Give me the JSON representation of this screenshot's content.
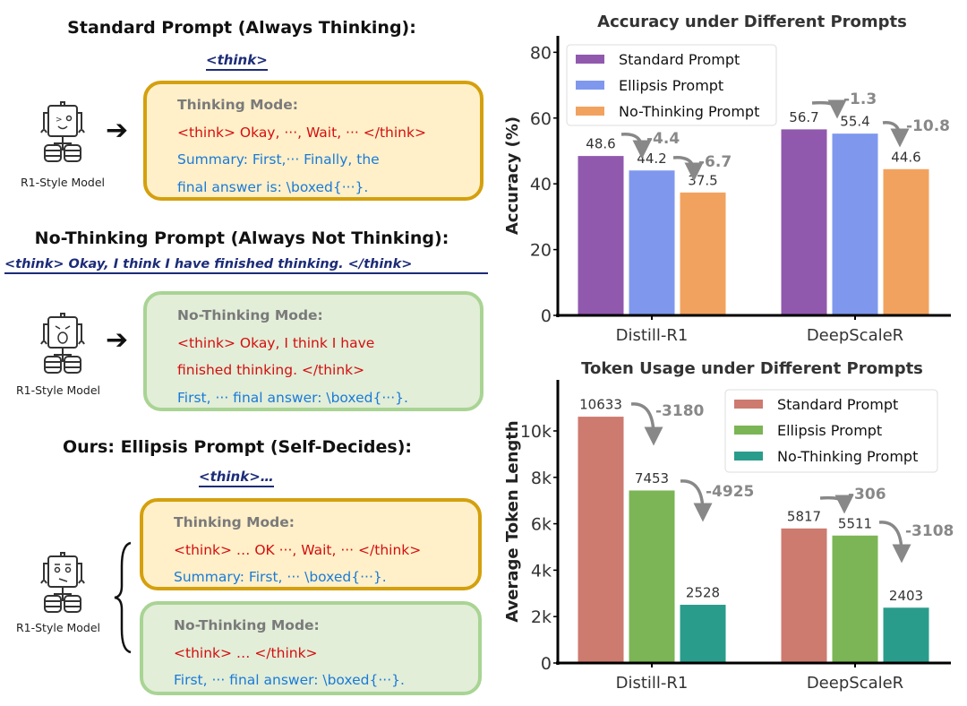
{
  "left": {
    "sections": [
      {
        "title": "Standard Prompt (Always Thinking):",
        "prompt": "<think>",
        "model_label": "R1-Style Model",
        "boxes": [
          {
            "mode": "Thinking Mode:",
            "lines_red": [
              "<think> Okay, ···, Wait, ··· </think>"
            ],
            "lines_blue": [
              "Summary: First,···  Finally, the",
              "final answer is: \\boxed{···}."
            ]
          }
        ]
      },
      {
        "title": "No-Thinking Prompt (Always Not Thinking):",
        "prompt": "<think> Okay, I think I have finished thinking. </think>",
        "model_label": "R1-Style Model",
        "boxes": [
          {
            "mode": "No-Thinking Mode:",
            "lines_red": [
              "<think> Okay, I think I have",
              "finished thinking. </think>"
            ],
            "lines_blue": [
              "First, ··· final answer: \\boxed{···}."
            ]
          }
        ]
      },
      {
        "title": "Ours: Ellipsis Prompt (Self-Decides):",
        "prompt": "<think>…",
        "model_label": "R1-Style Model",
        "boxes": [
          {
            "mode": "Thinking Mode:",
            "lines_red": [
              "<think> … OK ···, Wait, ··· </think>"
            ],
            "lines_blue": [
              "Summary: First, ··· \\boxed{···}."
            ]
          },
          {
            "mode": "No-Thinking Mode:",
            "lines_red": [
              "<think> … </think>"
            ],
            "lines_blue": [
              "First, ··· final answer: \\boxed{···}."
            ]
          }
        ]
      }
    ]
  },
  "chart_data": [
    {
      "type": "bar",
      "title": "Accuracy under Different Prompts",
      "xlabel": "",
      "ylabel": "Accuracy (%)",
      "ylim": [
        0,
        85
      ],
      "yticks": [
        0,
        20,
        40,
        60,
        80
      ],
      "ytick_labels": [
        "0",
        "20",
        "40",
        "60",
        "80"
      ],
      "categories": [
        "Distill-R1",
        "DeepScaleR"
      ],
      "series": [
        {
          "name": "Standard Prompt",
          "color": "#9159ae",
          "values": [
            48.6,
            56.7
          ],
          "labels": [
            "48.6",
            "56.7"
          ]
        },
        {
          "name": "Ellipsis Prompt",
          "color": "#7f98ee",
          "values": [
            44.2,
            55.4
          ],
          "labels": [
            "44.2",
            "55.4"
          ]
        },
        {
          "name": "No-Thinking Prompt",
          "color": "#f2a25f",
          "values": [
            37.5,
            44.6
          ],
          "labels": [
            "37.5",
            "44.6"
          ]
        }
      ],
      "annotations": [
        "-4.4",
        "-6.7",
        "-1.3",
        "-10.8"
      ],
      "legend": "top-left",
      "grid": false
    },
    {
      "type": "bar",
      "title": "Token Usage under Different Prompts",
      "xlabel": "",
      "ylabel": "Average Token Length",
      "ylim": [
        0,
        12200
      ],
      "yticks": [
        0,
        2000,
        4000,
        6000,
        8000,
        10000
      ],
      "ytick_labels": [
        "0",
        "2k",
        "4k",
        "6k",
        "8k",
        "10k"
      ],
      "categories": [
        "Distill-R1",
        "DeepScaleR"
      ],
      "series": [
        {
          "name": "Standard Prompt",
          "color": "#cd7a6f",
          "values": [
            10633,
            5817
          ],
          "labels": [
            "10633",
            "5817"
          ]
        },
        {
          "name": "Ellipsis Prompt",
          "color": "#7bb555",
          "values": [
            7453,
            5511
          ],
          "labels": [
            "7453",
            "5511"
          ]
        },
        {
          "name": "No-Thinking Prompt",
          "color": "#2a9c8c",
          "values": [
            2528,
            2403
          ],
          "labels": [
            "2528",
            "2403"
          ]
        }
      ],
      "annotations": [
        "-3180",
        "-4925",
        "-306",
        "-3108"
      ],
      "legend": "top-right",
      "grid": false
    }
  ]
}
